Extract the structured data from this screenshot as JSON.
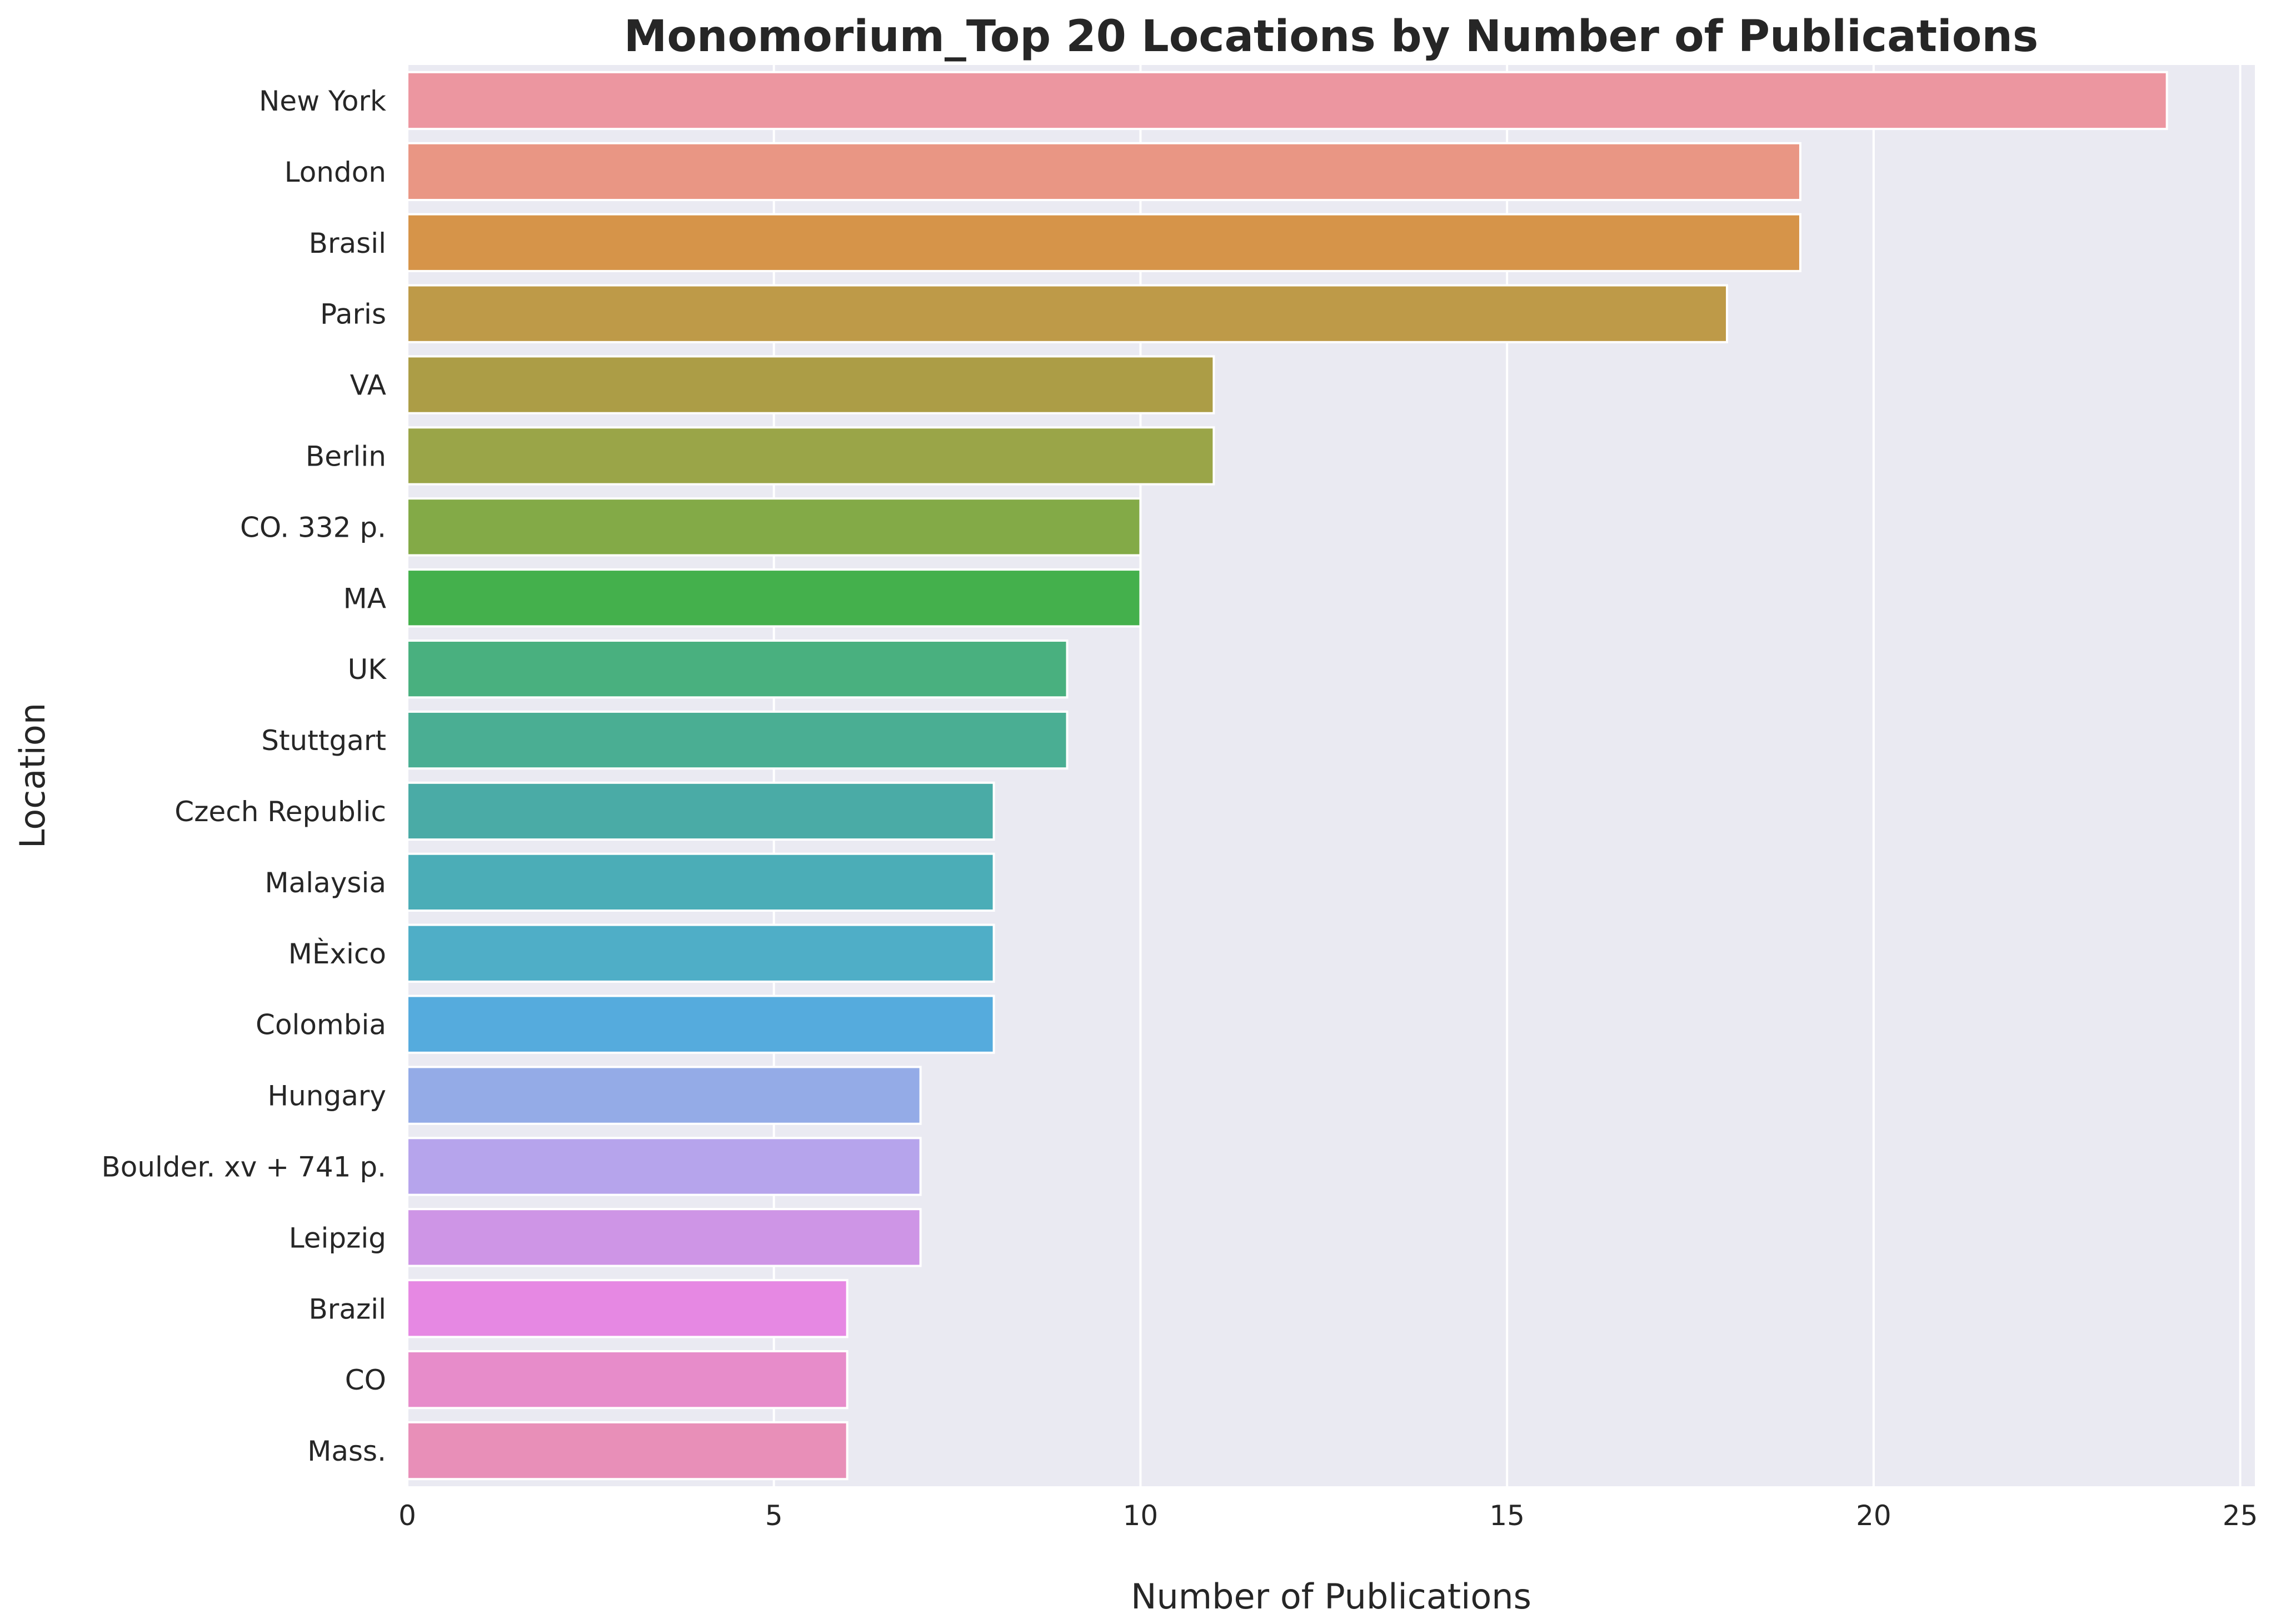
{
  "chart_data": {
    "type": "bar",
    "orientation": "horizontal",
    "title": "Monomorium_Top 20 Locations by Number of Publications",
    "xlabel": "Number of Publications",
    "ylabel": "Location",
    "xlim": [
      0,
      25.2
    ],
    "xticks": [
      0,
      5,
      10,
      15,
      20,
      25
    ],
    "grid": true,
    "legend": "none",
    "categories": [
      "New York",
      "London",
      "Brasil",
      "Paris",
      "VA",
      "Berlin",
      "CO. 332 p.",
      "MA",
      "UK",
      "Stuttgart",
      "Czech Republic",
      "Malaysia",
      "MÈxico",
      "Colombia",
      "Hungary",
      "Boulder.  xv + 741 p.",
      "Leipzig",
      "Brazil",
      "CO",
      "Mass."
    ],
    "values": [
      24,
      19,
      19,
      18,
      11,
      11,
      10,
      10,
      9,
      9,
      8,
      8,
      8,
      8,
      7,
      7,
      7,
      6,
      6,
      6
    ],
    "colors": [
      "#ec96a0",
      "#e99684",
      "#d69449",
      "#be9a48",
      "#ac9d46",
      "#9aa548",
      "#83aa47",
      "#44b04c",
      "#49b07f",
      "#4aae93",
      "#4aaba6",
      "#4badb7",
      "#4faec7",
      "#55abdd",
      "#94abe7",
      "#b6a4ec",
      "#ce95e6",
      "#e688e3",
      "#e78cca",
      "#e88fb8"
    ]
  }
}
